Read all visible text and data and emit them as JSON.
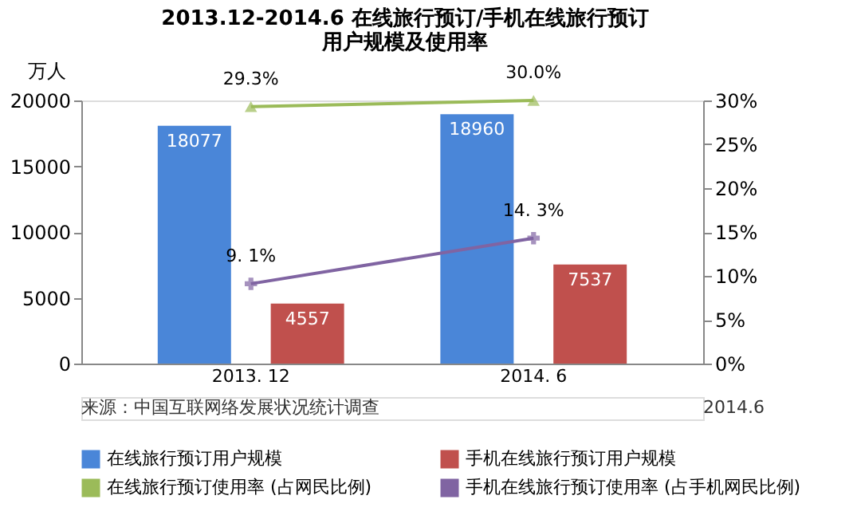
{
  "chart_data": {
    "type": "bar",
    "title": "2013.12-2014.6 在线旅行预订/手机在线旅行预订用户规模及使用率",
    "ylabel": "万人",
    "categories": [
      "2013. 12",
      "2014. 6"
    ],
    "series": [
      {
        "name": "在线旅行预订用户规模",
        "color": "#4a86d8",
        "values": [
          18077,
          18960
        ],
        "value_labels": [
          "18077",
          "18960"
        ]
      },
      {
        "name": "手机在线旅行预订用户规模",
        "color": "#c0504d",
        "values": [
          4557,
          7537
        ],
        "value_labels": [
          "4557",
          "7537"
        ]
      },
      {
        "name": "在线旅行预订使用率 (占网民比例)",
        "type": "line",
        "axis": "y2",
        "marker": "triangle",
        "color": "#9bbb59",
        "values": [
          29.3,
          30.0
        ],
        "value_labels": [
          "29.3%",
          "30.0%"
        ]
      },
      {
        "name": "手机在线旅行预订使用率 (占手机网民比例)",
        "type": "line",
        "axis": "y2",
        "marker": "cross",
        "color": "#8064a2",
        "values": [
          9.1,
          14.3
        ],
        "value_labels": [
          "9. 1%",
          "14. 3%"
        ]
      }
    ],
    "ylim": [
      0,
      20000
    ],
    "yticks": [
      0,
      5000,
      10000,
      15000,
      20000
    ],
    "y2lim": [
      0,
      30
    ],
    "y2ticks": [
      {
        "value": 0,
        "label": "0%"
      },
      {
        "value": 5,
        "label": "5%"
      },
      {
        "value": 10,
        "label": "10%"
      },
      {
        "value": 15,
        "label": "15%"
      },
      {
        "value": 20,
        "label": "20%"
      },
      {
        "value": 25,
        "label": "25%"
      },
      {
        "value": 30,
        "label": "30%"
      }
    ],
    "grid": false,
    "legend": "bottom",
    "line_style": "solid",
    "annotations": [
      "来源：中国互联网络发展状况统计调查",
      "2014.6"
    ]
  }
}
